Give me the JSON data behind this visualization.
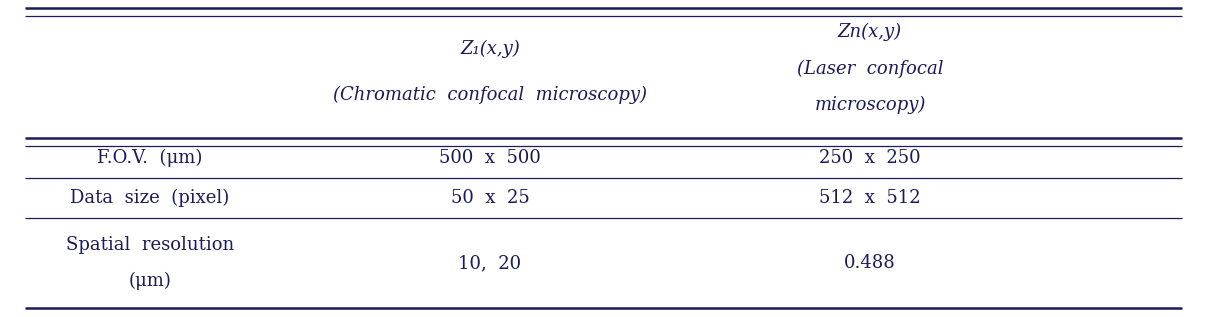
{
  "col1_header_line1": "Z₁(x,y)",
  "col1_header_line2": "(Chromatic  confocal  microscopy)",
  "col2_header_line1": "Zn(x,y)",
  "col2_header_line2": "(Laser  confocal",
  "col2_header_line3": "microscopy)",
  "row1_label": "F.O.V.  (μm)",
  "row1_col1": "500  x  500",
  "row1_col2": "250  x  250",
  "row2_label": "Data  size  (pixel)",
  "row2_col1": "50  x  25",
  "row2_col2": "512  x  512",
  "row3_label_line1": "Spatial  resolution",
  "row3_label_line2": "(μm)",
  "row3_col1": "10,  20",
  "row3_col2": "0.488",
  "text_color": "#1a1a5e",
  "line_color": "#1a1a5e",
  "bg_color": "#ffffff",
  "fontsize": 13,
  "italic_fontsize": 13
}
